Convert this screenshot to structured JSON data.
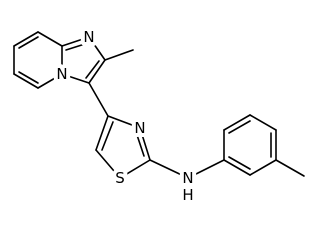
{
  "atoms": [
    {
      "label": "N"
    },
    {
      "label": "N"
    },
    {
      "label": "N"
    },
    {
      "label": "S"
    },
    {
      "label": "N"
    },
    {
      "label": "H"
    }
  ]
}
